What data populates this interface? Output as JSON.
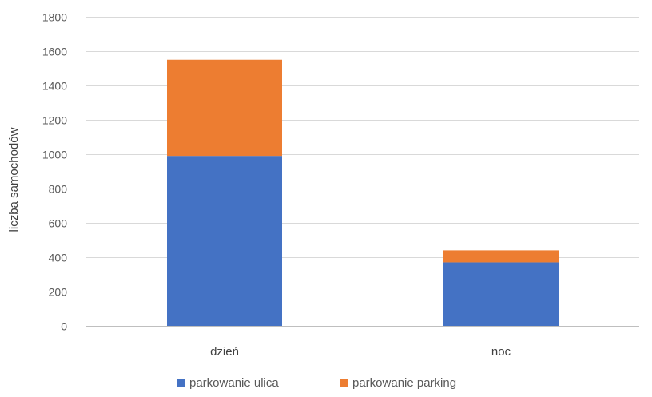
{
  "chart_data": {
    "type": "bar",
    "stacked": true,
    "categories": [
      "dzień",
      "noc"
    ],
    "series": [
      {
        "name": "parkowanie ulica",
        "values": [
          990,
          370
        ],
        "color": "#4472C4"
      },
      {
        "name": "parkowanie parking",
        "values": [
          560,
          70
        ],
        "color": "#ED7D31"
      }
    ],
    "ylabel": "liczba samochodów",
    "xlabel": "",
    "ylim": [
      0,
      1800
    ],
    "yticks": [
      0,
      200,
      400,
      600,
      800,
      1000,
      1200,
      1400,
      1600,
      1800
    ],
    "grid": true,
    "legend_position": "bottom"
  }
}
